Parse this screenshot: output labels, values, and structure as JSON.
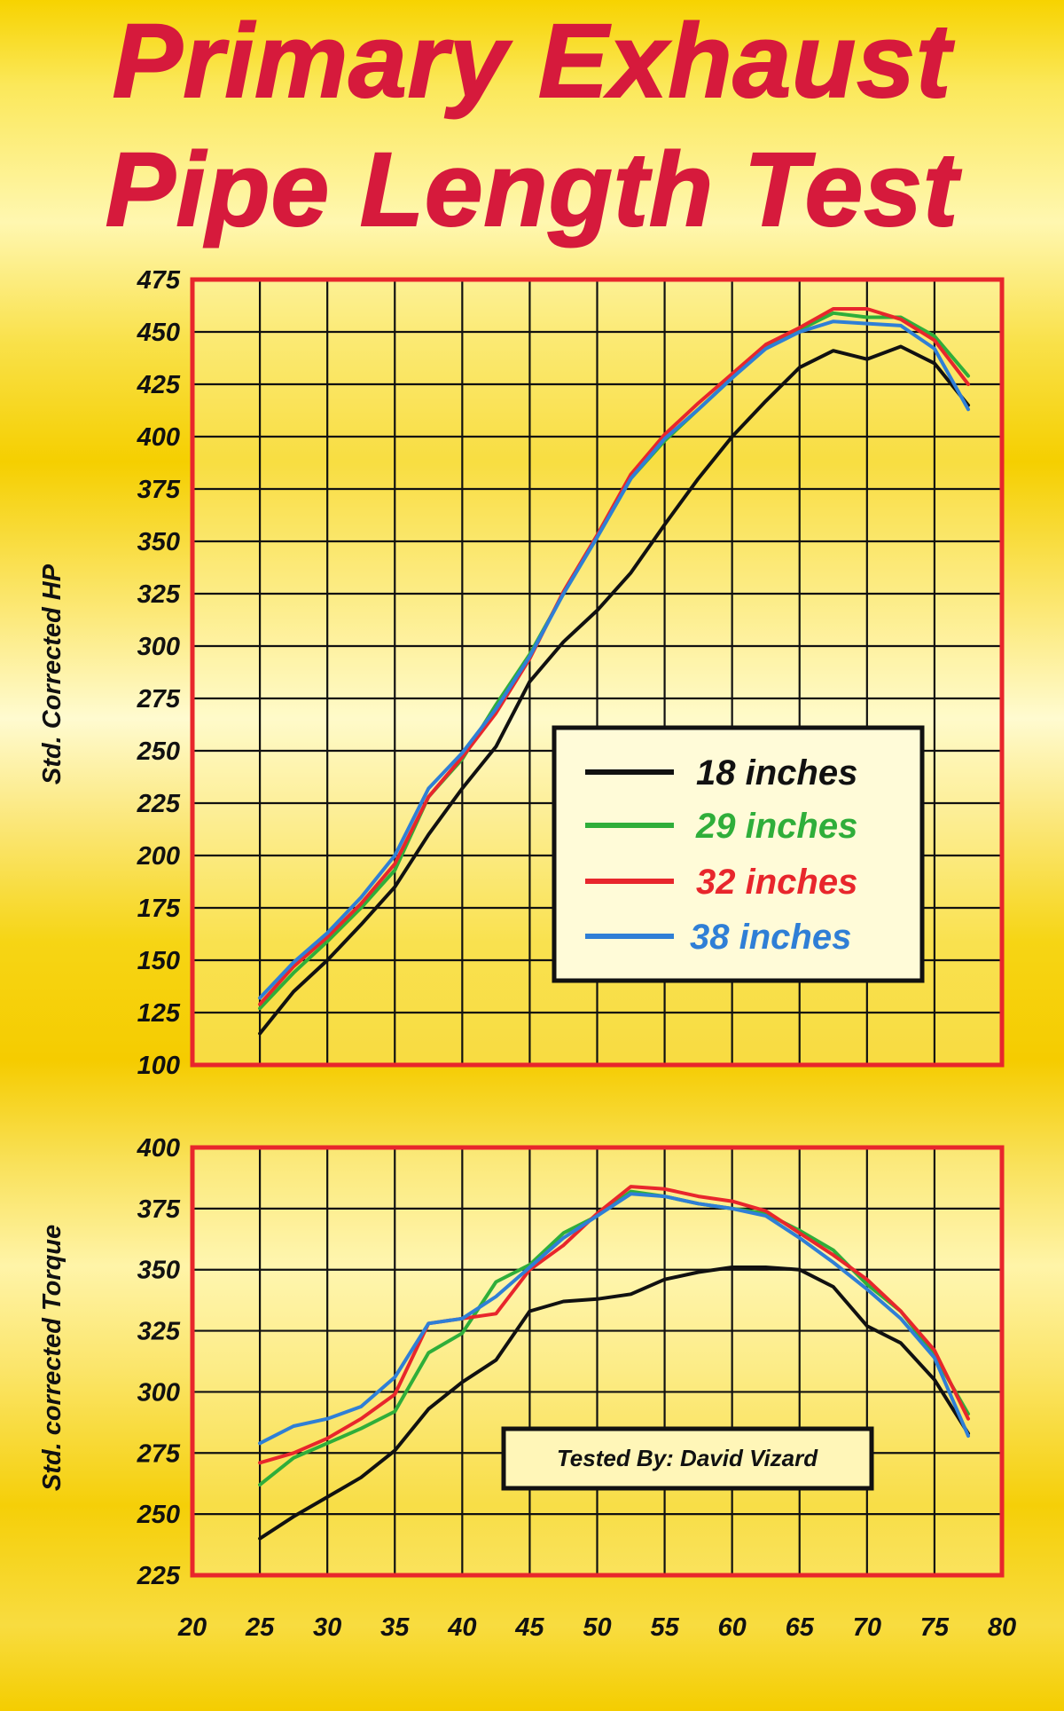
{
  "title": {
    "line1": "Primary Exhaust",
    "line2": "Pipe Length Test"
  },
  "credit": "Tested By: David Vizard",
  "legend": {
    "items": [
      {
        "label": "18 inches",
        "color": "#111111"
      },
      {
        "label": "29 inches",
        "color": "#2fae3a"
      },
      {
        "label": "32 inches",
        "color": "#e8262c"
      },
      {
        "label": "38 inches",
        "color": "#2f7fd6"
      }
    ]
  },
  "chart_data": [
    {
      "type": "line",
      "title": "",
      "xlabel": "",
      "ylabel": "Std. Corrected  HP",
      "xlim": [
        20,
        80
      ],
      "ylim": [
        100,
        475
      ],
      "xticks": [
        20,
        25,
        30,
        35,
        40,
        45,
        50,
        55,
        60,
        65,
        70,
        75,
        80
      ],
      "yticks": [
        100,
        125,
        150,
        175,
        200,
        225,
        250,
        275,
        300,
        325,
        350,
        375,
        400,
        425,
        450,
        475
      ],
      "grid": true,
      "legend_position": "center-right",
      "series": [
        {
          "name": "18 inches",
          "color": "#111111",
          "points": [
            [
              25,
              115
            ],
            [
              27.5,
              135
            ],
            [
              30,
              150
            ],
            [
              32.5,
              167
            ],
            [
              35,
              185
            ],
            [
              37.5,
              210
            ],
            [
              40,
              232
            ],
            [
              42.5,
              252
            ],
            [
              45,
              283
            ],
            [
              47.5,
              302
            ],
            [
              50,
              317
            ],
            [
              52.5,
              335
            ],
            [
              55,
              358
            ],
            [
              57.5,
              380
            ],
            [
              60,
              400
            ],
            [
              62.5,
              417
            ],
            [
              65,
              433
            ],
            [
              67.5,
              441
            ],
            [
              70,
              437
            ],
            [
              72.5,
              443
            ],
            [
              75,
              435
            ],
            [
              77.5,
              415
            ]
          ]
        },
        {
          "name": "29 inches",
          "color": "#2fae3a",
          "points": [
            [
              25,
              127
            ],
            [
              27.5,
              144
            ],
            [
              30,
              159
            ],
            [
              32.5,
              175
            ],
            [
              35,
              193
            ],
            [
              37.5,
              228
            ],
            [
              40,
              246
            ],
            [
              42.5,
              272
            ],
            [
              45,
              296
            ],
            [
              47.5,
              325
            ],
            [
              50,
              352
            ],
            [
              52.5,
              380
            ],
            [
              55,
              398
            ],
            [
              57.5,
              413
            ],
            [
              60,
              428
            ],
            [
              62.5,
              443
            ],
            [
              65,
              451
            ],
            [
              67.5,
              459
            ],
            [
              70,
              457
            ],
            [
              72.5,
              457
            ],
            [
              75,
              448
            ],
            [
              77.5,
              429
            ]
          ]
        },
        {
          "name": "32 inches",
          "color": "#e8262c",
          "points": [
            [
              25,
              129
            ],
            [
              27.5,
              147
            ],
            [
              30,
              161
            ],
            [
              32.5,
              177
            ],
            [
              35,
              196
            ],
            [
              37.5,
              228
            ],
            [
              40,
              247
            ],
            [
              42.5,
              268
            ],
            [
              45,
              294
            ],
            [
              47.5,
              326
            ],
            [
              50,
              353
            ],
            [
              52.5,
              382
            ],
            [
              55,
              401
            ],
            [
              57.5,
              416
            ],
            [
              60,
              430
            ],
            [
              62.5,
              444
            ],
            [
              65,
              452
            ],
            [
              67.5,
              461
            ],
            [
              70,
              461
            ],
            [
              72.5,
              456
            ],
            [
              75,
              446
            ],
            [
              77.5,
              425
            ]
          ]
        },
        {
          "name": "38 inches",
          "color": "#2f7fd6",
          "points": [
            [
              25,
              132
            ],
            [
              27.5,
              149
            ],
            [
              30,
              163
            ],
            [
              32.5,
              180
            ],
            [
              35,
              200
            ],
            [
              37.5,
              232
            ],
            [
              40,
              249
            ],
            [
              42.5,
              270
            ],
            [
              45,
              295
            ],
            [
              47.5,
              325
            ],
            [
              50,
              352
            ],
            [
              52.5,
              380
            ],
            [
              55,
              399
            ],
            [
              57.5,
              413
            ],
            [
              60,
              428
            ],
            [
              62.5,
              442
            ],
            [
              65,
              450
            ],
            [
              67.5,
              455
            ],
            [
              70,
              454
            ],
            [
              72.5,
              453
            ],
            [
              75,
              442
            ],
            [
              77.5,
              413
            ]
          ]
        }
      ]
    },
    {
      "type": "line",
      "title": "",
      "xlabel": "",
      "ylabel": "Std. corrected Torque",
      "xlim": [
        20,
        80
      ],
      "ylim": [
        225,
        400
      ],
      "xticks": [
        20,
        25,
        30,
        35,
        40,
        45,
        50,
        55,
        60,
        65,
        70,
        75,
        80
      ],
      "yticks": [
        225,
        250,
        275,
        300,
        325,
        350,
        375,
        400
      ],
      "grid": true,
      "series": [
        {
          "name": "18 inches",
          "color": "#111111",
          "points": [
            [
              25,
              240
            ],
            [
              27.5,
              249
            ],
            [
              30,
              257
            ],
            [
              32.5,
              265
            ],
            [
              35,
              276
            ],
            [
              37.5,
              293
            ],
            [
              40,
              304
            ],
            [
              42.5,
              313
            ],
            [
              45,
              333
            ],
            [
              47.5,
              337
            ],
            [
              50,
              338
            ],
            [
              52.5,
              340
            ],
            [
              55,
              346
            ],
            [
              57.5,
              349
            ],
            [
              60,
              351
            ],
            [
              62.5,
              351
            ],
            [
              65,
              350
            ],
            [
              67.5,
              343
            ],
            [
              70,
              327
            ],
            [
              72.5,
              320
            ],
            [
              75,
              305
            ],
            [
              77.5,
              283
            ]
          ]
        },
        {
          "name": "29 inches",
          "color": "#2fae3a",
          "points": [
            [
              25,
              262
            ],
            [
              27.5,
              273
            ],
            [
              30,
              279
            ],
            [
              32.5,
              285
            ],
            [
              35,
              292
            ],
            [
              37.5,
              316
            ],
            [
              40,
              324
            ],
            [
              42.5,
              345
            ],
            [
              45,
              352
            ],
            [
              47.5,
              365
            ],
            [
              50,
              372
            ],
            [
              52.5,
              382
            ],
            [
              55,
              380
            ],
            [
              57.5,
              377
            ],
            [
              60,
              375
            ],
            [
              62.5,
              373
            ],
            [
              65,
              366
            ],
            [
              67.5,
              358
            ],
            [
              70,
              344
            ],
            [
              72.5,
              333
            ],
            [
              75,
              315
            ],
            [
              77.5,
              291
            ]
          ]
        },
        {
          "name": "32 inches",
          "color": "#e8262c",
          "points": [
            [
              25,
              271
            ],
            [
              27.5,
              275
            ],
            [
              30,
              281
            ],
            [
              32.5,
              289
            ],
            [
              35,
              299
            ],
            [
              37.5,
              328
            ],
            [
              40,
              330
            ],
            [
              42.5,
              332
            ],
            [
              45,
              350
            ],
            [
              47.5,
              360
            ],
            [
              50,
              373
            ],
            [
              52.5,
              384
            ],
            [
              55,
              383
            ],
            [
              57.5,
              380
            ],
            [
              60,
              378
            ],
            [
              62.5,
              374
            ],
            [
              65,
              365
            ],
            [
              67.5,
              356
            ],
            [
              70,
              346
            ],
            [
              72.5,
              333
            ],
            [
              75,
              317
            ],
            [
              77.5,
              289
            ]
          ]
        },
        {
          "name": "38 inches",
          "color": "#2f7fd6",
          "points": [
            [
              25,
              279
            ],
            [
              27.5,
              286
            ],
            [
              30,
              289
            ],
            [
              32.5,
              294
            ],
            [
              35,
              306
            ],
            [
              37.5,
              328
            ],
            [
              40,
              330
            ],
            [
              42.5,
              339
            ],
            [
              45,
              351
            ],
            [
              47.5,
              363
            ],
            [
              50,
              372
            ],
            [
              52.5,
              381
            ],
            [
              55,
              380
            ],
            [
              57.5,
              377
            ],
            [
              60,
              375
            ],
            [
              62.5,
              372
            ],
            [
              65,
              363
            ],
            [
              67.5,
              353
            ],
            [
              70,
              342
            ],
            [
              72.5,
              330
            ],
            [
              75,
              314
            ],
            [
              77.5,
              282
            ]
          ]
        }
      ]
    }
  ]
}
